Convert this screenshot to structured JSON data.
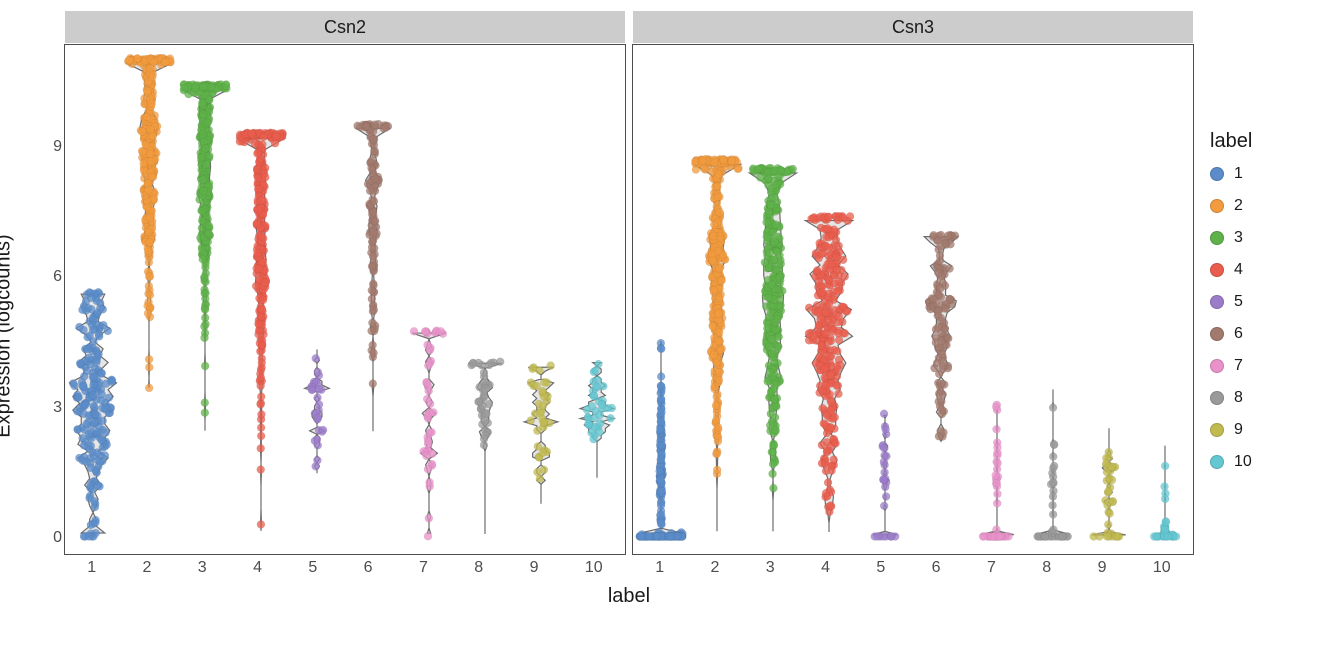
{
  "chart": {
    "type": "violin+jitter",
    "facets": [
      "Csn2",
      "Csn3"
    ],
    "x_label": "label",
    "y_label": "Expression (logcounts)",
    "legend_title": "label",
    "categories": [
      "1",
      "2",
      "3",
      "4",
      "5",
      "6",
      "7",
      "8",
      "9",
      "10"
    ],
    "colors": {
      "1": "#5b8cc9",
      "2": "#f29b3f",
      "3": "#5fb14a",
      "4": "#ea5d4e",
      "5": "#9b7cc9",
      "6": "#a27a6d",
      "7": "#e892c9",
      "8": "#9a9a9a",
      "9": "#c0ba4f",
      "10": "#64c7d1"
    },
    "ylim": [
      -0.4,
      11.2
    ],
    "yticks": [
      0,
      3,
      6,
      9
    ],
    "violin_outline": "#6d6d6d",
    "violin_fill": "#e6e6e6",
    "point_alpha": 0.75,
    "point_radius": 4,
    "label_fontsize": 16,
    "title_fontsize": 20,
    "strip_background": "#cccccc",
    "panel_border": "#4d4d4d",
    "background": "#ffffff",
    "series": {
      "Csn2": {
        "1": {
          "n": 210,
          "median": 3.1,
          "min": 0.0,
          "max": 5.6,
          "spread": "wide",
          "zero_pile": true
        },
        "2": {
          "n": 350,
          "median": 8.8,
          "min": 3.3,
          "max": 10.9,
          "spread": "wide"
        },
        "3": {
          "n": 320,
          "median": 8.6,
          "min": 2.3,
          "max": 10.3,
          "spread": "wide"
        },
        "4": {
          "n": 300,
          "median": 7.3,
          "min": 0.0,
          "max": 9.2,
          "spread": "wide"
        },
        "5": {
          "n": 28,
          "median": 2.9,
          "min": 1.4,
          "max": 4.3,
          "spread": "narrow"
        },
        "6": {
          "n": 120,
          "median": 7.8,
          "min": 2.3,
          "max": 9.4,
          "spread": "medium"
        },
        "7": {
          "n": 45,
          "median": 3.3,
          "min": 0.0,
          "max": 4.7,
          "spread": "medium"
        },
        "8": {
          "n": 40,
          "median": 3.1,
          "min": 0.0,
          "max": 4.0,
          "spread": "medium"
        },
        "9": {
          "n": 35,
          "median": 2.8,
          "min": 0.7,
          "max": 3.9,
          "spread": "medium"
        },
        "10": {
          "n": 35,
          "median": 2.9,
          "min": 1.3,
          "max": 4.0,
          "spread": "medium"
        }
      },
      "Csn3": {
        "1": {
          "n": 210,
          "median": 1.6,
          "min": 0.0,
          "max": 4.5,
          "spread": "wide",
          "zero_pile": true,
          "zero_heavy": true
        },
        "2": {
          "n": 350,
          "median": 6.3,
          "min": 0.0,
          "max": 8.6,
          "spread": "wide"
        },
        "3": {
          "n": 320,
          "median": 5.9,
          "min": 0.0,
          "max": 8.4,
          "spread": "wide"
        },
        "4": {
          "n": 300,
          "median": 4.8,
          "min": 0.0,
          "max": 7.3,
          "spread": "wide"
        },
        "5": {
          "n": 28,
          "median": 1.7,
          "min": 0.0,
          "max": 2.8,
          "spread": "narrow",
          "zero_pile": true,
          "zero_heavy": true
        },
        "6": {
          "n": 120,
          "median": 5.0,
          "min": 2.1,
          "max": 6.9,
          "spread": "medium"
        },
        "7": {
          "n": 45,
          "median": 1.7,
          "min": 0.0,
          "max": 3.0,
          "spread": "medium",
          "zero_pile": true,
          "zero_heavy": true
        },
        "8": {
          "n": 40,
          "median": 1.6,
          "min": 0.0,
          "max": 3.4,
          "spread": "medium",
          "zero_pile": true,
          "zero_heavy": true
        },
        "9": {
          "n": 35,
          "median": 1.2,
          "min": 0.0,
          "max": 2.5,
          "spread": "medium",
          "zero_pile": true,
          "zero_heavy": true
        },
        "10": {
          "n": 35,
          "median": 0.2,
          "min": 0.0,
          "max": 2.1,
          "spread": "narrow",
          "zero_pile": true,
          "zero_heavy": true
        }
      }
    }
  }
}
